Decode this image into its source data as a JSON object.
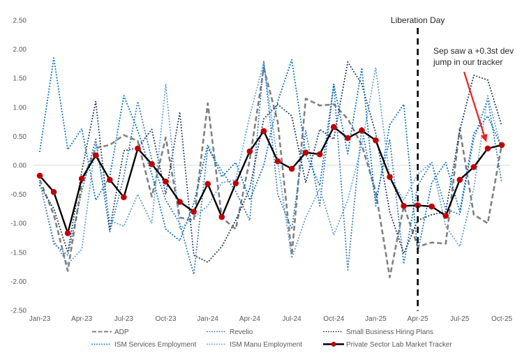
{
  "chart_data": {
    "type": "line",
    "title": "",
    "xlabel": "",
    "ylabel": "",
    "ylim": [
      -2.5,
      2.5
    ],
    "yticks": [
      "2.50",
      "2.00",
      "1.50",
      "1.00",
      "0.50",
      "0.00",
      "-0.50",
      "-1.00",
      "-1.50",
      "-2.00",
      "-2.50"
    ],
    "ytick_values": [
      2.5,
      2.0,
      1.5,
      1.0,
      0.5,
      0.0,
      -0.5,
      -1.0,
      -1.5,
      -2.0,
      -2.5
    ],
    "x": [
      "Jan-23",
      "Feb-23",
      "Mar-23",
      "Apr-23",
      "May-23",
      "Jun-23",
      "Jul-23",
      "Aug-23",
      "Sep-23",
      "Oct-23",
      "Nov-23",
      "Dec-23",
      "Jan-24",
      "Feb-24",
      "Mar-24",
      "Apr-24",
      "May-24",
      "Jun-24",
      "Jul-24",
      "Aug-24",
      "Sep-24",
      "Oct-24",
      "Nov-24",
      "Dec-24",
      "Jan-25",
      "Feb-25",
      "Mar-25",
      "Apr-25",
      "May-25",
      "Jun-25",
      "Jul-25",
      "Aug-25",
      "Sep-25",
      "Oct-25"
    ],
    "xtick_labels": [
      "Jan-23",
      "Apr-23",
      "Jul-23",
      "Oct-23",
      "Jan-24",
      "Apr-24",
      "Jul-24",
      "Oct-24",
      "Jan-25",
      "Apr-25",
      "Jul-25",
      "Oct-25"
    ],
    "grid": false,
    "zero_line": true,
    "legend_position": "bottom",
    "series": [
      {
        "name": "ADP",
        "style": "dashed",
        "color": "#808080",
        "values": [
          -0.25,
          -0.85,
          -1.82,
          -0.3,
          0.3,
          0.35,
          0.52,
          0.42,
          -0.54,
          0.48,
          -0.9,
          -0.95,
          1.07,
          -0.9,
          -1.1,
          0.1,
          1.68,
          0.75,
          -1.55,
          1.15,
          1.03,
          1.05,
          0.8,
          0.35,
          -0.45,
          -1.93,
          -0.7,
          -1.4,
          -1.33,
          -1.35,
          0.63,
          -0.85,
          -1.0,
          0.36
        ]
      },
      {
        "name": "Revelio",
        "style": "dotted",
        "color": "#2E75B6",
        "values": [
          -0.3,
          -1.35,
          -1.55,
          -0.45,
          0.45,
          -1.15,
          -0.2,
          1.1,
          0.1,
          -0.6,
          -1.0,
          -1.88,
          0.3,
          -0.1,
          -0.45,
          -0.95,
          1.8,
          -0.5,
          -1.1,
          0.6,
          -0.7,
          1.4,
          -1.8,
          0.65,
          -0.6,
          0.45,
          -1.7,
          -0.35,
          0.05,
          -0.75,
          -0.85,
          0.45,
          1.15,
          -0.3
        ]
      },
      {
        "name": "Small Business Hiring Plans",
        "style": "dotted",
        "color": "#1F3864",
        "values": [
          -0.35,
          -0.75,
          -1.5,
          -0.1,
          1.1,
          -1.1,
          0.25,
          0.3,
          0.62,
          -0.5,
          0.92,
          -1.55,
          -1.67,
          -1.4,
          -0.95,
          -0.4,
          0.8,
          1.05,
          0.85,
          -0.3,
          0.62,
          0.45,
          1.78,
          1.4,
          0.55,
          -0.8,
          -1.52,
          -0.95,
          -0.85,
          -0.8,
          0.6,
          1.55,
          1.47,
          0.68
        ]
      },
      {
        "name": "ISM Services Employment",
        "style": "dotted",
        "color": "#0070C0",
        "values": [
          0.24,
          1.85,
          0.27,
          0.63,
          -0.6,
          -0.2,
          1.2,
          0.6,
          -0.15,
          -1.1,
          -1.3,
          -0.65,
          0.35,
          -0.2,
          0.05,
          -0.6,
          0.0,
          1.1,
          1.82,
          0.2,
          -0.35,
          1.4,
          0.2,
          1.68,
          -0.7,
          0.7,
          1.05,
          -1.5,
          -0.3,
          0.05,
          -0.8,
          0.55,
          0.85,
          0.3
        ]
      },
      {
        "name": "ISM Manu Employment",
        "style": "dotted",
        "color": "#5B9BD5",
        "values": [
          -0.3,
          -1.3,
          -1.7,
          -1.45,
          0.4,
          -0.95,
          -1.05,
          -0.5,
          -1.0,
          1.4,
          -1.1,
          -0.9,
          -0.7,
          -0.3,
          -0.25,
          0.85,
          1.78,
          0.05,
          -1.6,
          -0.9,
          -0.4,
          -1.2,
          -0.6,
          0.35,
          1.68,
          -0.2,
          -0.6,
          -0.15,
          0.05,
          -1.05,
          -1.4,
          -0.4,
          1.2,
          0.25
        ]
      },
      {
        "name": "Private Sector Lab Market Tracker",
        "style": "solid-markers",
        "color": "#000000",
        "marker_color": "#C00000",
        "values": [
          -0.18,
          -0.46,
          -1.17,
          -0.23,
          0.17,
          -0.25,
          -0.55,
          0.29,
          0.02,
          -0.28,
          -0.63,
          -0.8,
          -0.32,
          -0.89,
          -0.31,
          0.24,
          0.59,
          0.07,
          -0.06,
          0.22,
          0.19,
          0.66,
          0.47,
          0.6,
          0.43,
          -0.2,
          -0.7,
          -0.69,
          -0.71,
          -0.87,
          -0.25,
          -0.03,
          0.29,
          0.35
        ]
      }
    ],
    "annotations": [
      {
        "id": "liberation-day",
        "text": "Liberation Day",
        "x": "Apr-25",
        "type": "vertical-dashed-line",
        "color": "#000000"
      },
      {
        "id": "sep-jump",
        "text_lines": [
          "Sep saw a +0.3st dev",
          "jump in our tracker"
        ],
        "points_to": "Sep-25",
        "type": "arrow",
        "color": "#E8201F"
      }
    ]
  }
}
